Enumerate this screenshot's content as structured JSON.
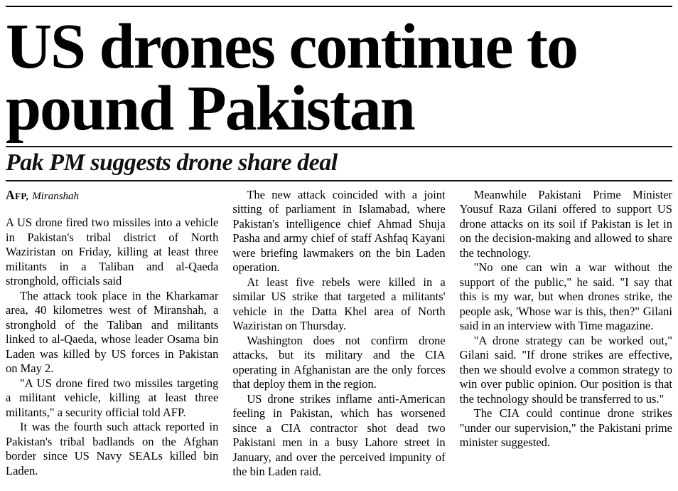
{
  "colors": {
    "background": "#ffffff",
    "text": "#000000",
    "rule": "#111111"
  },
  "page": {
    "headline": "US drones continue to pound Pakistan",
    "subheadline": "Pak PM suggests drone share deal",
    "byline": {
      "agency": "AFP,",
      "location": "Miranshah"
    }
  },
  "article": {
    "columns": [
      {
        "paragraphs": [
          "A US drone fired two missiles into a vehicle in Pakistan's tribal district of North Waziristan on Friday, killing at least three militants in a Taliban and al-Qaeda stronghold, officials said",
          "The attack took place in the Kharkamar area, 40 kilometres west of Miranshah, a stronghold of the Taliban and militants linked to al-Qaeda, whose leader Osama bin Laden was killed by US forces in Pakistan on May 2.",
          "\"A US drone fired two missiles targeting a militant vehicle, killing at least three militants,\" a security official told AFP.",
          "It was the fourth such attack reported in Pakistan's tribal badlands on the Afghan border since US Navy SEALs killed bin Laden."
        ]
      },
      {
        "paragraphs": [
          "The new attack coincided with a joint sitting of parliament in Islamabad, where Pakistan's intelligence chief Ahmad Shuja Pasha and army chief of staff Ashfaq Kayani were briefing lawmakers on the bin Laden operation.",
          "At least five rebels were killed in a similar US strike that targeted a militants' vehicle in the Datta Khel area of North Waziristan on Thursday.",
          "Washington does not confirm drone attacks, but its military and the CIA operating in Afghanistan are the only forces that deploy them in the region.",
          "US drone strikes inflame anti-American feeling in Pakistan, which has worsened since a CIA contractor shot dead two Pakistani men in a busy Lahore street in January, and over the perceived impunity of the bin Laden raid."
        ]
      },
      {
        "paragraphs": [
          "Meanwhile Pakistani Prime Minister Yousuf Raza Gilani offered to support US drone attacks on its soil if Pakistan is let in on the decision-making and allowed to share the technology.",
          "\"No one can win a war without the support of the public,\" he said. \"I say that this is my war, but when drones strike, the people ask, 'Whose war is this, then?\" Gilani said in an interview with Time magazine.",
          "\"A drone strategy can be worked out,\" Gilani said. \"If drone strikes are effective, then we should evolve a common strategy to win over public opinion. Our position is that the technology should be transferred to us.\"",
          "The CIA could continue drone strikes \"under our supervision,\" the Pakistani prime minister suggested."
        ]
      }
    ]
  }
}
